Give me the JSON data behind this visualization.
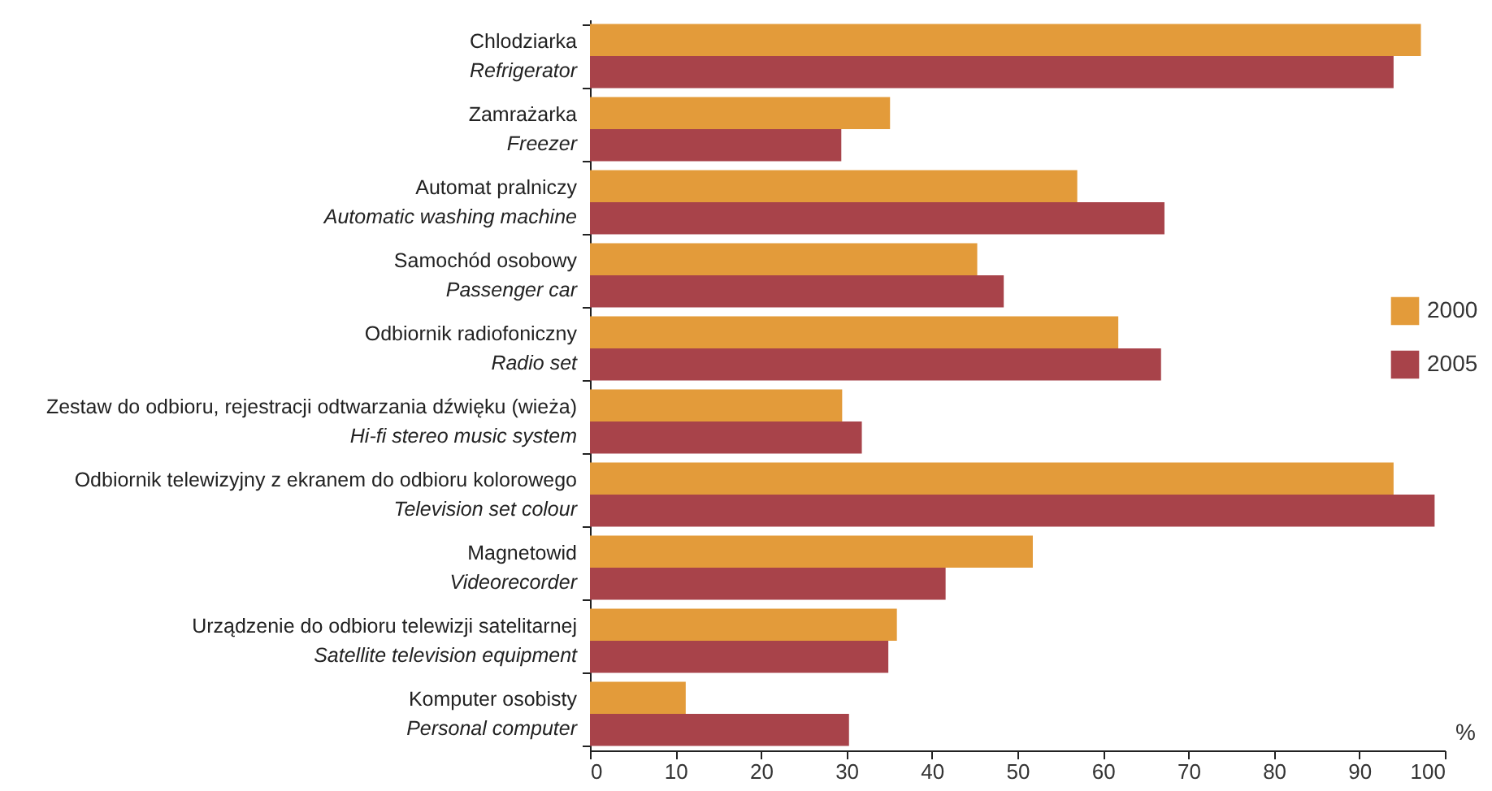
{
  "chart_data": {
    "type": "bar",
    "orientation": "horizontal",
    "xlabel": "%",
    "categories": [
      "Chlodziarka\nRefrigerator",
      "Zamrażarka\nFreezer",
      "Automat pralniczy\nAutomatic washing machine",
      "Samochód osobowy\nPassenger car",
      "Odbiornik radiofoniczny\nRadio set",
      "Zestaw do odbioru, rejestracji odtwarzania dźwięku (wieża)\nHi-fi stereo music system",
      "Odbiornik telewizyjny z ekranem do odbioru kolorowego\nTelevision set colour",
      "Magnetowid\nVideorecorder",
      "Urządzenie do odbioru telewizji satelitarnej\nSatellite television equipment",
      "Komputer osobisty\nPersonal computer"
    ],
    "series": [
      {
        "name": "2000",
        "color": "#e39b3a",
        "values": [
          97.2,
          35.1,
          57.0,
          45.3,
          61.8,
          29.5,
          94.0,
          51.8,
          35.9,
          11.2
        ]
      },
      {
        "name": "2005",
        "color": "#a8434a",
        "values": [
          94.0,
          29.4,
          67.2,
          48.4,
          66.8,
          31.8,
          98.8,
          41.6,
          34.9,
          30.3
        ]
      }
    ],
    "xlim": [
      0,
      100
    ],
    "xticks": [
      0,
      10,
      20,
      30,
      40,
      50,
      60,
      70,
      80,
      90,
      100
    ],
    "grid": false,
    "legend": "right"
  }
}
